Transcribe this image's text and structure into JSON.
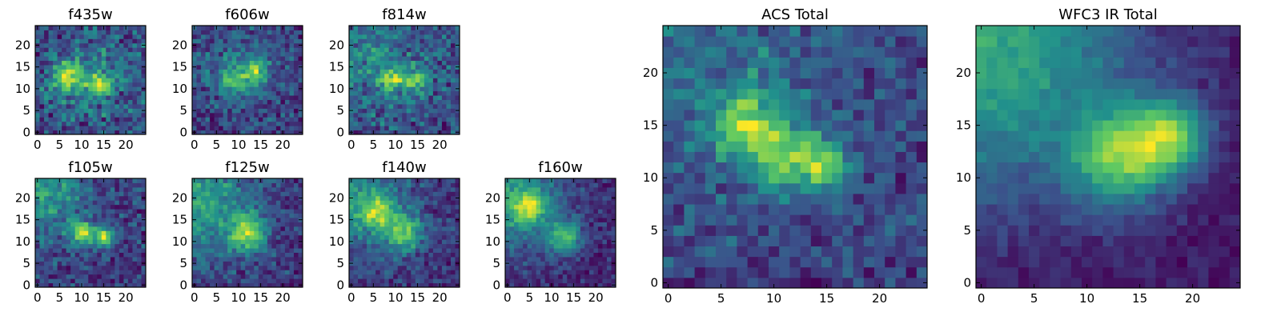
{
  "colors": {
    "colormap": [
      "#440154",
      "#3b528b",
      "#21918c",
      "#5ec962",
      "#fde725"
    ],
    "frame": "#000000",
    "background": "#ffffff"
  },
  "chart_data": [
    {
      "id": "f435w",
      "type": "heatmap",
      "title": "f435w",
      "colormap": "viridis",
      "grid": false,
      "xlim": [
        -0.5,
        24.5
      ],
      "ylim": [
        -0.5,
        24.5
      ],
      "xticks": [
        0,
        5,
        10,
        15,
        20
      ],
      "yticks": [
        0,
        5,
        10,
        15,
        20
      ],
      "shape": [
        25,
        25
      ],
      "hotspots": [
        [
          14,
          11,
          1.6
        ],
        [
          7,
          13,
          2.4
        ]
      ],
      "large_scale": [
        [
          12,
          12,
          7,
          0.35
        ]
      ],
      "noise": 0.55,
      "seed": 11
    },
    {
      "id": "f606w",
      "type": "heatmap",
      "title": "f606w",
      "colormap": "viridis",
      "grid": false,
      "xlim": [
        -0.5,
        24.5
      ],
      "ylim": [
        -0.5,
        24.5
      ],
      "xticks": [
        0,
        5,
        10,
        15,
        20
      ],
      "yticks": [
        0,
        5,
        10,
        15,
        20
      ],
      "shape": [
        25,
        25
      ],
      "hotspots": [
        [
          9,
          12,
          2.0
        ],
        [
          14,
          14,
          1.8
        ]
      ],
      "large_scale": [
        [
          10,
          14,
          7,
          0.45
        ]
      ],
      "noise": 0.55,
      "seed": 23
    },
    {
      "id": "f814w",
      "type": "heatmap",
      "title": "f814w",
      "colormap": "viridis",
      "grid": false,
      "xlim": [
        -0.5,
        24.5
      ],
      "ylim": [
        -0.5,
        24.5
      ],
      "xticks": [
        0,
        5,
        10,
        15,
        20
      ],
      "yticks": [
        0,
        5,
        10,
        15,
        20
      ],
      "shape": [
        25,
        25
      ],
      "hotspots": [
        [
          9,
          12,
          2.2
        ],
        [
          15,
          12,
          1.8
        ]
      ],
      "large_scale": [
        [
          5,
          18,
          8,
          0.35
        ]
      ],
      "noise": 0.55,
      "seed": 37
    },
    {
      "id": "f105w",
      "type": "heatmap",
      "title": "f105w",
      "colormap": "viridis",
      "grid": false,
      "xlim": [
        -0.5,
        24.5
      ],
      "ylim": [
        -0.5,
        24.5
      ],
      "xticks": [
        0,
        5,
        10,
        15,
        20
      ],
      "yticks": [
        0,
        5,
        10,
        15,
        20
      ],
      "shape": [
        25,
        25
      ],
      "hotspots": [
        [
          10,
          12,
          1.8
        ],
        [
          15,
          11,
          1.6
        ]
      ],
      "large_scale": [
        [
          0,
          22,
          8,
          0.6
        ]
      ],
      "noise": 0.35,
      "seed": 41
    },
    {
      "id": "f125w",
      "type": "heatmap",
      "title": "f125w",
      "colormap": "viridis",
      "grid": false,
      "xlim": [
        -0.5,
        24.5
      ],
      "ylim": [
        -0.5,
        24.5
      ],
      "xticks": [
        0,
        5,
        10,
        15,
        20
      ],
      "yticks": [
        0,
        5,
        10,
        15,
        20
      ],
      "shape": [
        25,
        25
      ],
      "hotspots": [
        [
          12,
          12,
          3.0
        ]
      ],
      "large_scale": [
        [
          0,
          20,
          9,
          0.7
        ]
      ],
      "noise": 0.35,
      "seed": 53
    },
    {
      "id": "f140w",
      "type": "heatmap",
      "title": "f140w",
      "colormap": "viridis",
      "grid": false,
      "xlim": [
        -0.5,
        24.5
      ],
      "ylim": [
        -0.5,
        24.5
      ],
      "xticks": [
        0,
        5,
        10,
        15,
        20
      ],
      "yticks": [
        0,
        5,
        10,
        15,
        20
      ],
      "shape": [
        25,
        25
      ],
      "hotspots": [
        [
          12,
          12,
          3.0
        ],
        [
          6,
          17,
          2.5
        ]
      ],
      "large_scale": [
        [
          0,
          20,
          9,
          0.7
        ]
      ],
      "noise": 0.35,
      "seed": 67
    },
    {
      "id": "f160w",
      "type": "heatmap",
      "title": "f160w",
      "colormap": "viridis",
      "grid": false,
      "xlim": [
        -0.5,
        24.5
      ],
      "ylim": [
        -0.5,
        24.5
      ],
      "xticks": [
        0,
        5,
        10,
        15,
        20
      ],
      "yticks": [
        0,
        5,
        10,
        15,
        20
      ],
      "shape": [
        25,
        25
      ],
      "hotspots": [
        [
          13,
          11,
          2.6
        ],
        [
          5,
          18,
          2.6
        ]
      ],
      "large_scale": [
        [
          0,
          20,
          9,
          0.8
        ]
      ],
      "noise": 0.3,
      "seed": 79
    },
    {
      "id": "acs-total",
      "type": "heatmap",
      "title": "ACS Total",
      "colormap": "viridis",
      "grid": false,
      "xlim": [
        -0.5,
        24.5
      ],
      "ylim": [
        -0.5,
        24.5
      ],
      "xticks": [
        0,
        5,
        10,
        15,
        20
      ],
      "yticks": [
        0,
        5,
        10,
        15,
        20
      ],
      "shape": [
        25,
        25
      ],
      "hotspots": [
        [
          7,
          15,
          2.2
        ],
        [
          11,
          12,
          2.2
        ],
        [
          15,
          11,
          1.6
        ]
      ],
      "large_scale": [
        [
          6,
          20,
          8,
          0.35
        ]
      ],
      "noise": 0.4,
      "seed": 97
    },
    {
      "id": "wfc3-ir-total",
      "type": "heatmap",
      "title": "WFC3 IR Total",
      "colormap": "viridis",
      "grid": false,
      "xlim": [
        -0.5,
        24.5
      ],
      "ylim": [
        -0.5,
        24.5
      ],
      "xticks": [
        0,
        5,
        10,
        15,
        20
      ],
      "yticks": [
        0,
        5,
        10,
        15,
        20
      ],
      "shape": [
        25,
        25
      ],
      "hotspots": [
        [
          13,
          12,
          3.2
        ],
        [
          18,
          14,
          2.5
        ]
      ],
      "large_scale": [
        [
          0,
          23,
          10,
          0.9
        ]
      ],
      "noise": 0.15,
      "seed": 131
    }
  ]
}
